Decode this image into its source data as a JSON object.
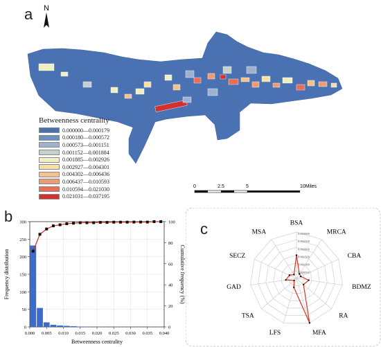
{
  "panels": {
    "a": "a",
    "b": "b",
    "c": "c"
  },
  "north_arrow": {
    "label": "N"
  },
  "legend": {
    "title": "Betweenness centrality",
    "items": [
      {
        "label": "0.000000—0.000179",
        "color": "#4a72b3"
      },
      {
        "label": "0.000180—0.000572",
        "color": "#6f8fbf"
      },
      {
        "label": "0.000573—0.001151",
        "color": "#9db2cf"
      },
      {
        "label": "0.001152—0.001884",
        "color": "#c5d0cf"
      },
      {
        "label": "0.001885—0.002926",
        "color": "#eef0c4"
      },
      {
        "label": "0.002927—0.004301",
        "color": "#f7dfaa"
      },
      {
        "label": "0.004302—0.006436",
        "color": "#f4c18f"
      },
      {
        "label": "0.006437—0.010593",
        "color": "#ee9c74"
      },
      {
        "label": "0.010594—0.021030",
        "color": "#e4705a"
      },
      {
        "label": "0.021031—0.037195",
        "color": "#d3302f"
      }
    ]
  },
  "scale_bar": {
    "ticks": [
      "0",
      "2.5",
      "5",
      "10Miles"
    ]
  },
  "chart_data": [
    {
      "type": "bar",
      "xlabel": "Betweenness centrality",
      "ylabel": "Frequency distribution",
      "y2label": "Cumulative frequency (%)",
      "xlim": [
        0,
        0.04
      ],
      "ylim": [
        0,
        300
      ],
      "y2lim": [
        0,
        100
      ],
      "xticks": [
        "0.000",
        "0.005",
        "0.010",
        "0.015",
        "0.020",
        "0.025",
        "0.030",
        "0.035",
        "0.040"
      ],
      "yticks": [
        "0",
        "50",
        "100",
        "150",
        "200",
        "250",
        "300"
      ],
      "y2ticks": [
        "0",
        "20",
        "40",
        "60",
        "80",
        "100"
      ],
      "bar_color": "#3a6cc8",
      "curve_color": "#d22b1e",
      "bins": [
        {
          "x": 0.001,
          "value": 232
        },
        {
          "x": 0.003,
          "value": 54
        },
        {
          "x": 0.005,
          "value": 13
        },
        {
          "x": 0.007,
          "value": 6
        },
        {
          "x": 0.009,
          "value": 4
        },
        {
          "x": 0.011,
          "value": 3
        },
        {
          "x": 0.013,
          "value": 2
        },
        {
          "x": 0.015,
          "value": 1
        },
        {
          "x": 0.017,
          "value": 1
        },
        {
          "x": 0.021,
          "value": 1
        },
        {
          "x": 0.025,
          "value": 1
        },
        {
          "x": 0.037,
          "value": 1
        }
      ],
      "cumulative": [
        {
          "x": 0.001,
          "value": 72
        },
        {
          "x": 0.003,
          "value": 88
        },
        {
          "x": 0.005,
          "value": 93
        },
        {
          "x": 0.007,
          "value": 96
        },
        {
          "x": 0.009,
          "value": 97
        },
        {
          "x": 0.011,
          "value": 98
        },
        {
          "x": 0.013,
          "value": 98.5
        },
        {
          "x": 0.015,
          "value": 99
        },
        {
          "x": 0.017,
          "value": 99
        },
        {
          "x": 0.019,
          "value": 99
        },
        {
          "x": 0.021,
          "value": 99.3
        },
        {
          "x": 0.023,
          "value": 99.3
        },
        {
          "x": 0.025,
          "value": 99.5
        },
        {
          "x": 0.027,
          "value": 99.5
        },
        {
          "x": 0.029,
          "value": 99.5
        },
        {
          "x": 0.031,
          "value": 99.6
        },
        {
          "x": 0.033,
          "value": 99.6
        },
        {
          "x": 0.035,
          "value": 99.6
        },
        {
          "x": 0.037,
          "value": 100
        },
        {
          "x": 0.039,
          "value": 100
        }
      ]
    },
    {
      "type": "radar",
      "axes": [
        "BSA",
        "MRCA",
        "CBA",
        "BDMZ",
        "RA",
        "MFA",
        "LFS",
        "TSA",
        "GAD",
        "SECZ",
        "MSA"
      ],
      "rings": [
        "0.000500",
        "0.001000",
        "0.001500",
        "0.002000",
        "0.002500",
        "0.003000"
      ],
      "rmax": 0.003,
      "values": [
        0.0015,
        0.00035,
        0.0003,
        0.0008,
        0.0006,
        0.003,
        0.0006,
        0.0002,
        0.0007,
        0.0005,
        0.0003
      ],
      "line_color": "#e0301e"
    }
  ]
}
